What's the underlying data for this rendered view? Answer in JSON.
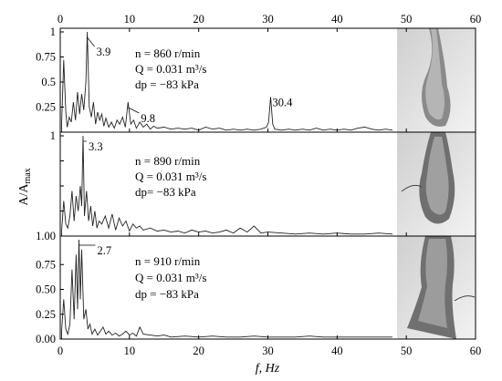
{
  "chart_data": [
    {
      "type": "line",
      "panel": "top",
      "xlim": [
        0,
        60
      ],
      "ylim": [
        0,
        1
      ],
      "y_ticks": [
        "1",
        "0.75",
        "0.5",
        "0.25"
      ],
      "x_ticks_top": [
        "0",
        "10",
        "20",
        "30",
        "40",
        "50",
        "60"
      ],
      "info": [
        "n = 860 r/min",
        "Q = 0.031 m³/s",
        "dp = −83 kPa"
      ],
      "peaks": [
        {
          "x": 3.9,
          "y": 1.0,
          "label": "3.9"
        },
        {
          "x": 9.8,
          "y": 0.3,
          "label": "9.8"
        },
        {
          "x": 30.4,
          "y": 0.35,
          "label": "30.4"
        }
      ],
      "x": [
        0.2,
        0.5,
        0.8,
        1.0,
        1.3,
        1.6,
        1.9,
        2.2,
        2.5,
        2.8,
        3.1,
        3.4,
        3.7,
        3.9,
        4.2,
        4.5,
        4.8,
        5.1,
        5.4,
        5.7,
        6.0,
        6.3,
        6.6,
        7.0,
        7.4,
        7.8,
        8.2,
        8.6,
        9.0,
        9.4,
        9.8,
        10.2,
        10.6,
        11.0,
        11.5,
        12.0,
        12.5,
        13.0,
        13.5,
        14.0,
        15.0,
        16.0,
        17.0,
        18.0,
        19.0,
        20.0,
        21.0,
        22.0,
        23.0,
        24.0,
        25.0,
        26.0,
        27.0,
        28.0,
        29.0,
        29.8,
        30.1,
        30.4,
        30.7,
        31.0,
        32.0,
        33.0,
        34.0,
        35.0,
        36.0,
        37.0,
        38.0,
        39.0,
        40.0,
        41.0,
        42.0,
        43.0,
        44.0,
        45.0,
        46.0,
        47.0,
        48.0
      ],
      "y": [
        0.08,
        0.72,
        0.2,
        0.05,
        0.15,
        0.1,
        0.3,
        0.12,
        0.4,
        0.18,
        0.38,
        0.22,
        0.5,
        1.0,
        0.25,
        0.15,
        0.3,
        0.08,
        0.2,
        0.12,
        0.18,
        0.06,
        0.14,
        0.05,
        0.1,
        0.04,
        0.12,
        0.08,
        0.15,
        0.05,
        0.3,
        0.08,
        0.12,
        0.04,
        0.1,
        0.05,
        0.08,
        0.03,
        0.06,
        0.04,
        0.05,
        0.03,
        0.04,
        0.03,
        0.04,
        0.02,
        0.05,
        0.03,
        0.04,
        0.02,
        0.03,
        0.02,
        0.03,
        0.02,
        0.03,
        0.05,
        0.1,
        0.35,
        0.08,
        0.03,
        0.02,
        0.03,
        0.02,
        0.03,
        0.02,
        0.04,
        0.02,
        0.03,
        0.02,
        0.03,
        0.02,
        0.04,
        0.05,
        0.03,
        0.02,
        0.03,
        0.02
      ]
    },
    {
      "type": "line",
      "panel": "middle",
      "xlim": [
        0,
        60
      ],
      "ylim": [
        0,
        1
      ],
      "y_ticks": [
        "1",
        "",
        "",
        "",
        "1.00"
      ],
      "info": [
        "n = 890 r/min",
        "Q = 0.031 m³/s",
        "dp= −83 kPa"
      ],
      "peaks": [
        {
          "x": 3.3,
          "y": 1.0,
          "label": "3.3"
        }
      ],
      "x": [
        0.2,
        0.5,
        0.8,
        1.1,
        1.4,
        1.7,
        2.0,
        2.3,
        2.6,
        2.9,
        3.1,
        3.3,
        3.5,
        3.8,
        4.1,
        4.4,
        4.7,
        5.0,
        5.3,
        5.6,
        6.0,
        6.5,
        7.0,
        7.5,
        8.0,
        8.5,
        9.0,
        9.5,
        10.0,
        10.5,
        11.0,
        11.5,
        12.0,
        13.0,
        14.0,
        15.0,
        16.0,
        17.0,
        18.0,
        19.0,
        20.0,
        21.0,
        22.0,
        23.0,
        24.0,
        25.0,
        26.0,
        27.0,
        28.0,
        29.0,
        30.0,
        32.0,
        34.0,
        36.0,
        38.0,
        40.0,
        42.0,
        44.0,
        46.0,
        48.0
      ],
      "y": [
        0.05,
        0.35,
        0.12,
        0.08,
        0.2,
        0.45,
        0.15,
        0.4,
        0.25,
        0.5,
        0.3,
        1.0,
        0.2,
        0.45,
        0.15,
        0.3,
        0.1,
        0.25,
        0.08,
        0.15,
        0.12,
        0.2,
        0.08,
        0.22,
        0.06,
        0.18,
        0.1,
        0.15,
        0.05,
        0.12,
        0.08,
        0.1,
        0.06,
        0.08,
        0.05,
        0.06,
        0.04,
        0.05,
        0.03,
        0.06,
        0.04,
        0.05,
        0.03,
        0.04,
        0.06,
        0.03,
        0.08,
        0.04,
        0.1,
        0.03,
        0.04,
        0.03,
        0.02,
        0.03,
        0.02,
        0.03,
        0.02,
        0.02,
        0.03,
        0.02
      ]
    },
    {
      "type": "line",
      "panel": "bottom",
      "xlim": [
        0,
        60
      ],
      "ylim": [
        0,
        1
      ],
      "y_ticks": [
        "0.75",
        "0.50",
        "0.25",
        "0.00"
      ],
      "x_ticks_bottom": [
        "0",
        "10",
        "20",
        "30",
        "40",
        "50",
        "60"
      ],
      "xlabel": "f, Hz",
      "info": [
        "n = 910 r/min",
        "Q = 0.031 m³/s",
        "dp = −83 kPa"
      ],
      "peaks": [
        {
          "x": 2.7,
          "y": 1.0,
          "label": "2.7"
        }
      ],
      "x": [
        0.2,
        0.5,
        0.8,
        1.1,
        1.4,
        1.7,
        2.0,
        2.3,
        2.5,
        2.7,
        2.9,
        3.1,
        3.4,
        3.7,
        4.0,
        4.3,
        4.6,
        5.0,
        5.4,
        5.8,
        6.2,
        6.6,
        7.0,
        7.5,
        8.0,
        8.5,
        9.0,
        9.5,
        10.0,
        10.5,
        11.0,
        11.5,
        12.0,
        13.0,
        14.0,
        15.0,
        16.0,
        18.0,
        20.0,
        22.0,
        24.0,
        26.0,
        28.0,
        30.0,
        32.0,
        34.0,
        36.0,
        38.0,
        40.0,
        42.0,
        44.0,
        46.0,
        48.0
      ],
      "y": [
        0.08,
        0.4,
        0.1,
        0.05,
        0.15,
        0.7,
        0.2,
        0.85,
        0.3,
        1.0,
        0.4,
        0.9,
        0.2,
        0.3,
        0.1,
        0.15,
        0.05,
        0.1,
        0.04,
        0.08,
        0.12,
        0.05,
        0.08,
        0.04,
        0.06,
        0.03,
        0.05,
        0.08,
        0.04,
        0.06,
        0.03,
        0.12,
        0.05,
        0.04,
        0.03,
        0.04,
        0.02,
        0.03,
        0.02,
        0.03,
        0.02,
        0.02,
        0.03,
        0.02,
        0.02,
        0.02,
        0.03,
        0.02,
        0.02,
        0.02,
        0.02,
        0.02,
        0.02
      ]
    }
  ],
  "ylabel": "A/A",
  "ylabel_sub": "max"
}
